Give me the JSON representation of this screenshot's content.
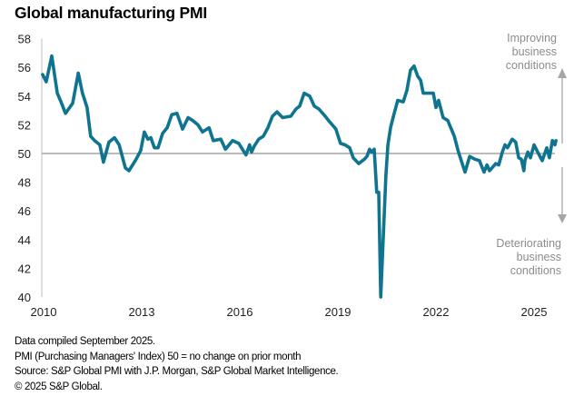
{
  "chart_data": {
    "type": "line",
    "title": "Global manufacturing PMI",
    "xlabel": "",
    "ylabel": "",
    "xlim": [
      2009.97,
      2025.7
    ],
    "ylim": [
      40,
      58
    ],
    "grid": false,
    "yticks": [
      40,
      42,
      44,
      46,
      48,
      50,
      52,
      54,
      56,
      58
    ],
    "xticks": [
      2010,
      2013,
      2016,
      2019,
      2022,
      2025
    ],
    "xtick_labels": [
      "2010",
      "2013",
      "2016",
      "2019",
      "2022",
      "2025"
    ],
    "reference_line": {
      "y": 50,
      "label": "50 = no change on prior month"
    },
    "line_color": "#0e7490",
    "reference_color": "#a6a6a6",
    "series": [
      {
        "name": "Global manufacturing PMI",
        "x": [
          2009.97,
          2010.08,
          2010.25,
          2010.42,
          2010.55,
          2010.67,
          2010.89,
          2011.06,
          2011.19,
          2011.33,
          2011.44,
          2011.56,
          2011.72,
          2011.83,
          2012.0,
          2012.17,
          2012.31,
          2012.5,
          2012.61,
          2012.83,
          2012.97,
          2013.08,
          2013.19,
          2013.28,
          2013.39,
          2013.5,
          2013.64,
          2013.78,
          2013.92,
          2014.08,
          2014.25,
          2014.42,
          2014.56,
          2014.72,
          2014.86,
          2015.06,
          2015.19,
          2015.42,
          2015.56,
          2015.78,
          2015.97,
          2016.19,
          2016.3,
          2016.36,
          2016.44,
          2016.58,
          2016.72,
          2016.86,
          2017.0,
          2017.14,
          2017.31,
          2017.56,
          2017.72,
          2017.83,
          2017.97,
          2018.14,
          2018.28,
          2018.42,
          2018.61,
          2018.75,
          2018.94,
          2019.08,
          2019.22,
          2019.36,
          2019.47,
          2019.64,
          2019.81,
          2019.89,
          2019.97,
          2020.03,
          2020.11,
          2020.19,
          2020.25,
          2020.31,
          2020.47,
          2020.53,
          2020.61,
          2020.69,
          2020.83,
          2021.0,
          2021.11,
          2021.22,
          2021.33,
          2021.44,
          2021.53,
          2021.61,
          2021.72,
          2021.92,
          2022.0,
          2022.08,
          2022.22,
          2022.36,
          2022.56,
          2022.69,
          2022.89,
          2023.03,
          2023.19,
          2023.33,
          2023.47,
          2023.56,
          2023.64,
          2023.83,
          2023.92,
          2024.03,
          2024.11,
          2024.19,
          2024.33,
          2024.44,
          2024.53,
          2024.61,
          2024.69,
          2024.72,
          2024.81,
          2024.89,
          2025.0,
          2025.11,
          2025.25,
          2025.39,
          2025.47,
          2025.56,
          2025.64,
          2025.67
        ],
        "y": [
          55.5,
          55.0,
          56.8,
          54.2,
          53.5,
          52.8,
          53.5,
          55.6,
          54.2,
          53.2,
          51.2,
          50.9,
          50.6,
          49.4,
          50.8,
          51.1,
          50.6,
          49.0,
          48.8,
          49.6,
          50.2,
          51.5,
          51.0,
          51.1,
          50.4,
          50.4,
          51.4,
          51.8,
          52.7,
          52.8,
          51.7,
          52.5,
          52.3,
          52.0,
          51.5,
          51.8,
          50.9,
          51.0,
          50.3,
          50.9,
          50.7,
          49.9,
          50.6,
          50.1,
          50.5,
          51.0,
          51.2,
          51.8,
          52.6,
          52.9,
          52.5,
          52.6,
          53.1,
          53.3,
          54.2,
          54.0,
          53.3,
          53.1,
          52.6,
          52.2,
          51.7,
          50.7,
          50.6,
          50.4,
          49.7,
          49.3,
          49.6,
          49.8,
          50.3,
          50.1,
          50.3,
          47.3,
          47.3,
          39.8,
          48.5,
          50.6,
          51.8,
          52.5,
          53.7,
          53.6,
          54.4,
          55.8,
          56.1,
          55.4,
          55.1,
          54.2,
          54.2,
          54.2,
          53.2,
          53.7,
          52.5,
          52.3,
          51.2,
          50.1,
          48.7,
          49.8,
          49.6,
          49.5,
          48.7,
          49.2,
          48.8,
          49.3,
          49.2,
          50.1,
          50.6,
          50.4,
          51.0,
          50.8,
          49.7,
          49.6,
          48.8,
          49.5,
          50.1,
          49.7,
          50.6,
          50.1,
          49.5,
          50.4,
          49.7,
          50.9,
          50.6,
          50.9
        ]
      }
    ],
    "annotations": [
      {
        "text": [
          "Improving",
          "business",
          "conditions"
        ],
        "arrow": "up"
      },
      {
        "text": [
          "Deteriorating",
          "business",
          "conditions"
        ],
        "arrow": "down"
      }
    ]
  },
  "footer": {
    "line1": "Data compiled September 2025.",
    "line2": "PMI (Purchasing Managers' Index) 50 = no change on prior month",
    "line3": "Source: S&P Global  PMI with J.P. Morgan, S&P Global Market Intelligence.",
    "line4": "© 2025 S&P Global."
  }
}
